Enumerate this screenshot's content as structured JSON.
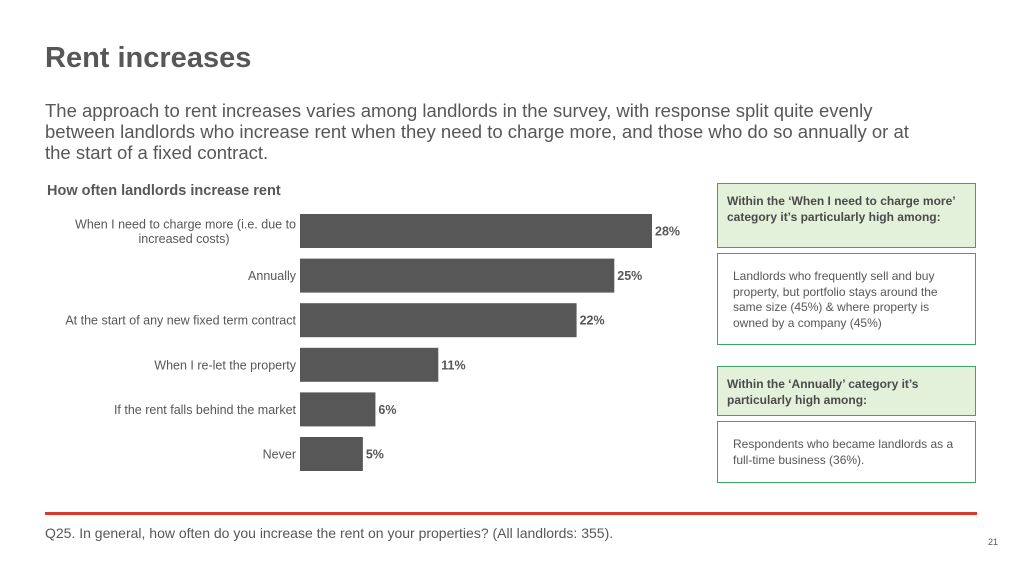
{
  "slide": {
    "title": "Rent increases",
    "subtitle": "The approach to rent increases varies among landlords in the survey, with response split quite evenly between landlords who increase rent when they need to charge more, and those who do so annually or at the start of a fixed contract.",
    "footnote": "Q25. In general, how often do you increase the rent on your properties? (All landlords: 355).",
    "page_number": "21"
  },
  "chart_data": {
    "type": "bar",
    "orientation": "horizontal",
    "title": "How often landlords increase rent",
    "categories": [
      [
        "When I need to charge more (i.e. due to",
        "increased costs)"
      ],
      [
        "Annually"
      ],
      [
        "At the start of any new fixed term contract"
      ],
      [
        "When I re-let the property"
      ],
      [
        "If the rent falls behind the market"
      ],
      [
        "Never"
      ]
    ],
    "values": [
      28,
      25,
      22,
      11,
      6,
      5
    ],
    "value_labels": [
      "28%",
      "25%",
      "22%",
      "11%",
      "6%",
      "5%"
    ],
    "unit": "%",
    "xlim": [
      0,
      28
    ],
    "grid": false,
    "bar_color": "#575757"
  },
  "callouts": [
    {
      "heading": "Within the ‘When I need to charge more’ category it’s particularly high among:",
      "body": "Landlords who frequently sell and buy property, but portfolio stays around the same size (45%) & where property is owned by a company (45%)"
    },
    {
      "heading": "Within the ‘Annually’ category it’s particularly high among:",
      "body": "Respondents who became landlords as a full-time business (36%)."
    }
  ],
  "colors": {
    "text": "#575757",
    "bar": "#575757",
    "callout_border": "#3aa860",
    "callout_fill": "#e4f1da",
    "rule": "#d83b2b"
  }
}
